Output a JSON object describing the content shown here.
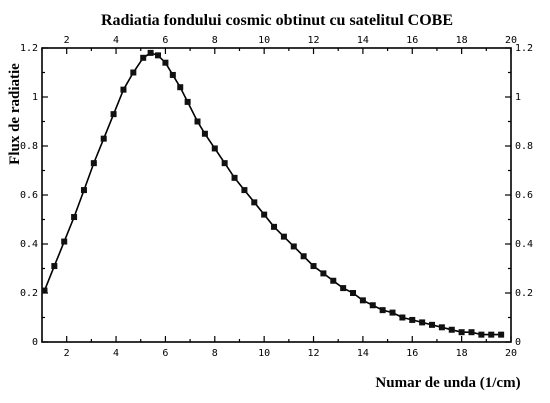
{
  "chart_data": {
    "type": "scatter",
    "title": "Radiatia fondului cosmic obtinut cu satelitul COBE",
    "xlabel": "Numar de unda (1/cm)",
    "ylabel": "Flux de radiatie",
    "xlim": [
      1,
      20
    ],
    "ylim": [
      0,
      1.2
    ],
    "x_ticks": [
      2,
      4,
      6,
      8,
      10,
      12,
      14,
      16,
      18,
      20
    ],
    "x_tick_labels": [
      "2",
      "4",
      "6",
      "8",
      "10",
      "12",
      "14",
      "16",
      "18",
      "20"
    ],
    "y_ticks": [
      0,
      0.2,
      0.4,
      0.6,
      0.8,
      1.0,
      1.2
    ],
    "y_tick_labels": [
      "0",
      "0.2",
      "0.4",
      "0.6",
      "0.8",
      "1",
      "1.2"
    ],
    "grid": false,
    "series": [
      {
        "marker": "square",
        "line": true,
        "x": [
          1.1,
          1.5,
          1.9,
          2.3,
          2.7,
          3.1,
          3.5,
          3.9,
          4.3,
          4.7,
          5.1,
          5.4,
          5.7,
          6.0,
          6.3,
          6.6,
          6.9,
          7.3,
          7.6,
          8.0,
          8.4,
          8.8,
          9.2,
          9.6,
          10.0,
          10.4,
          10.8,
          11.2,
          11.6,
          12.0,
          12.4,
          12.8,
          13.2,
          13.6,
          14.0,
          14.4,
          14.8,
          15.2,
          15.6,
          16.0,
          16.4,
          16.8,
          17.2,
          17.6,
          18.0,
          18.4,
          18.8,
          19.2,
          19.6
        ],
        "y": [
          0.21,
          0.31,
          0.41,
          0.51,
          0.62,
          0.73,
          0.83,
          0.93,
          1.03,
          1.1,
          1.16,
          1.18,
          1.17,
          1.14,
          1.09,
          1.04,
          0.98,
          0.9,
          0.85,
          0.79,
          0.73,
          0.67,
          0.62,
          0.57,
          0.52,
          0.47,
          0.43,
          0.39,
          0.35,
          0.31,
          0.28,
          0.25,
          0.22,
          0.2,
          0.17,
          0.15,
          0.13,
          0.12,
          0.1,
          0.09,
          0.08,
          0.07,
          0.06,
          0.05,
          0.04,
          0.04,
          0.03,
          0.03,
          0.03
        ]
      }
    ]
  }
}
